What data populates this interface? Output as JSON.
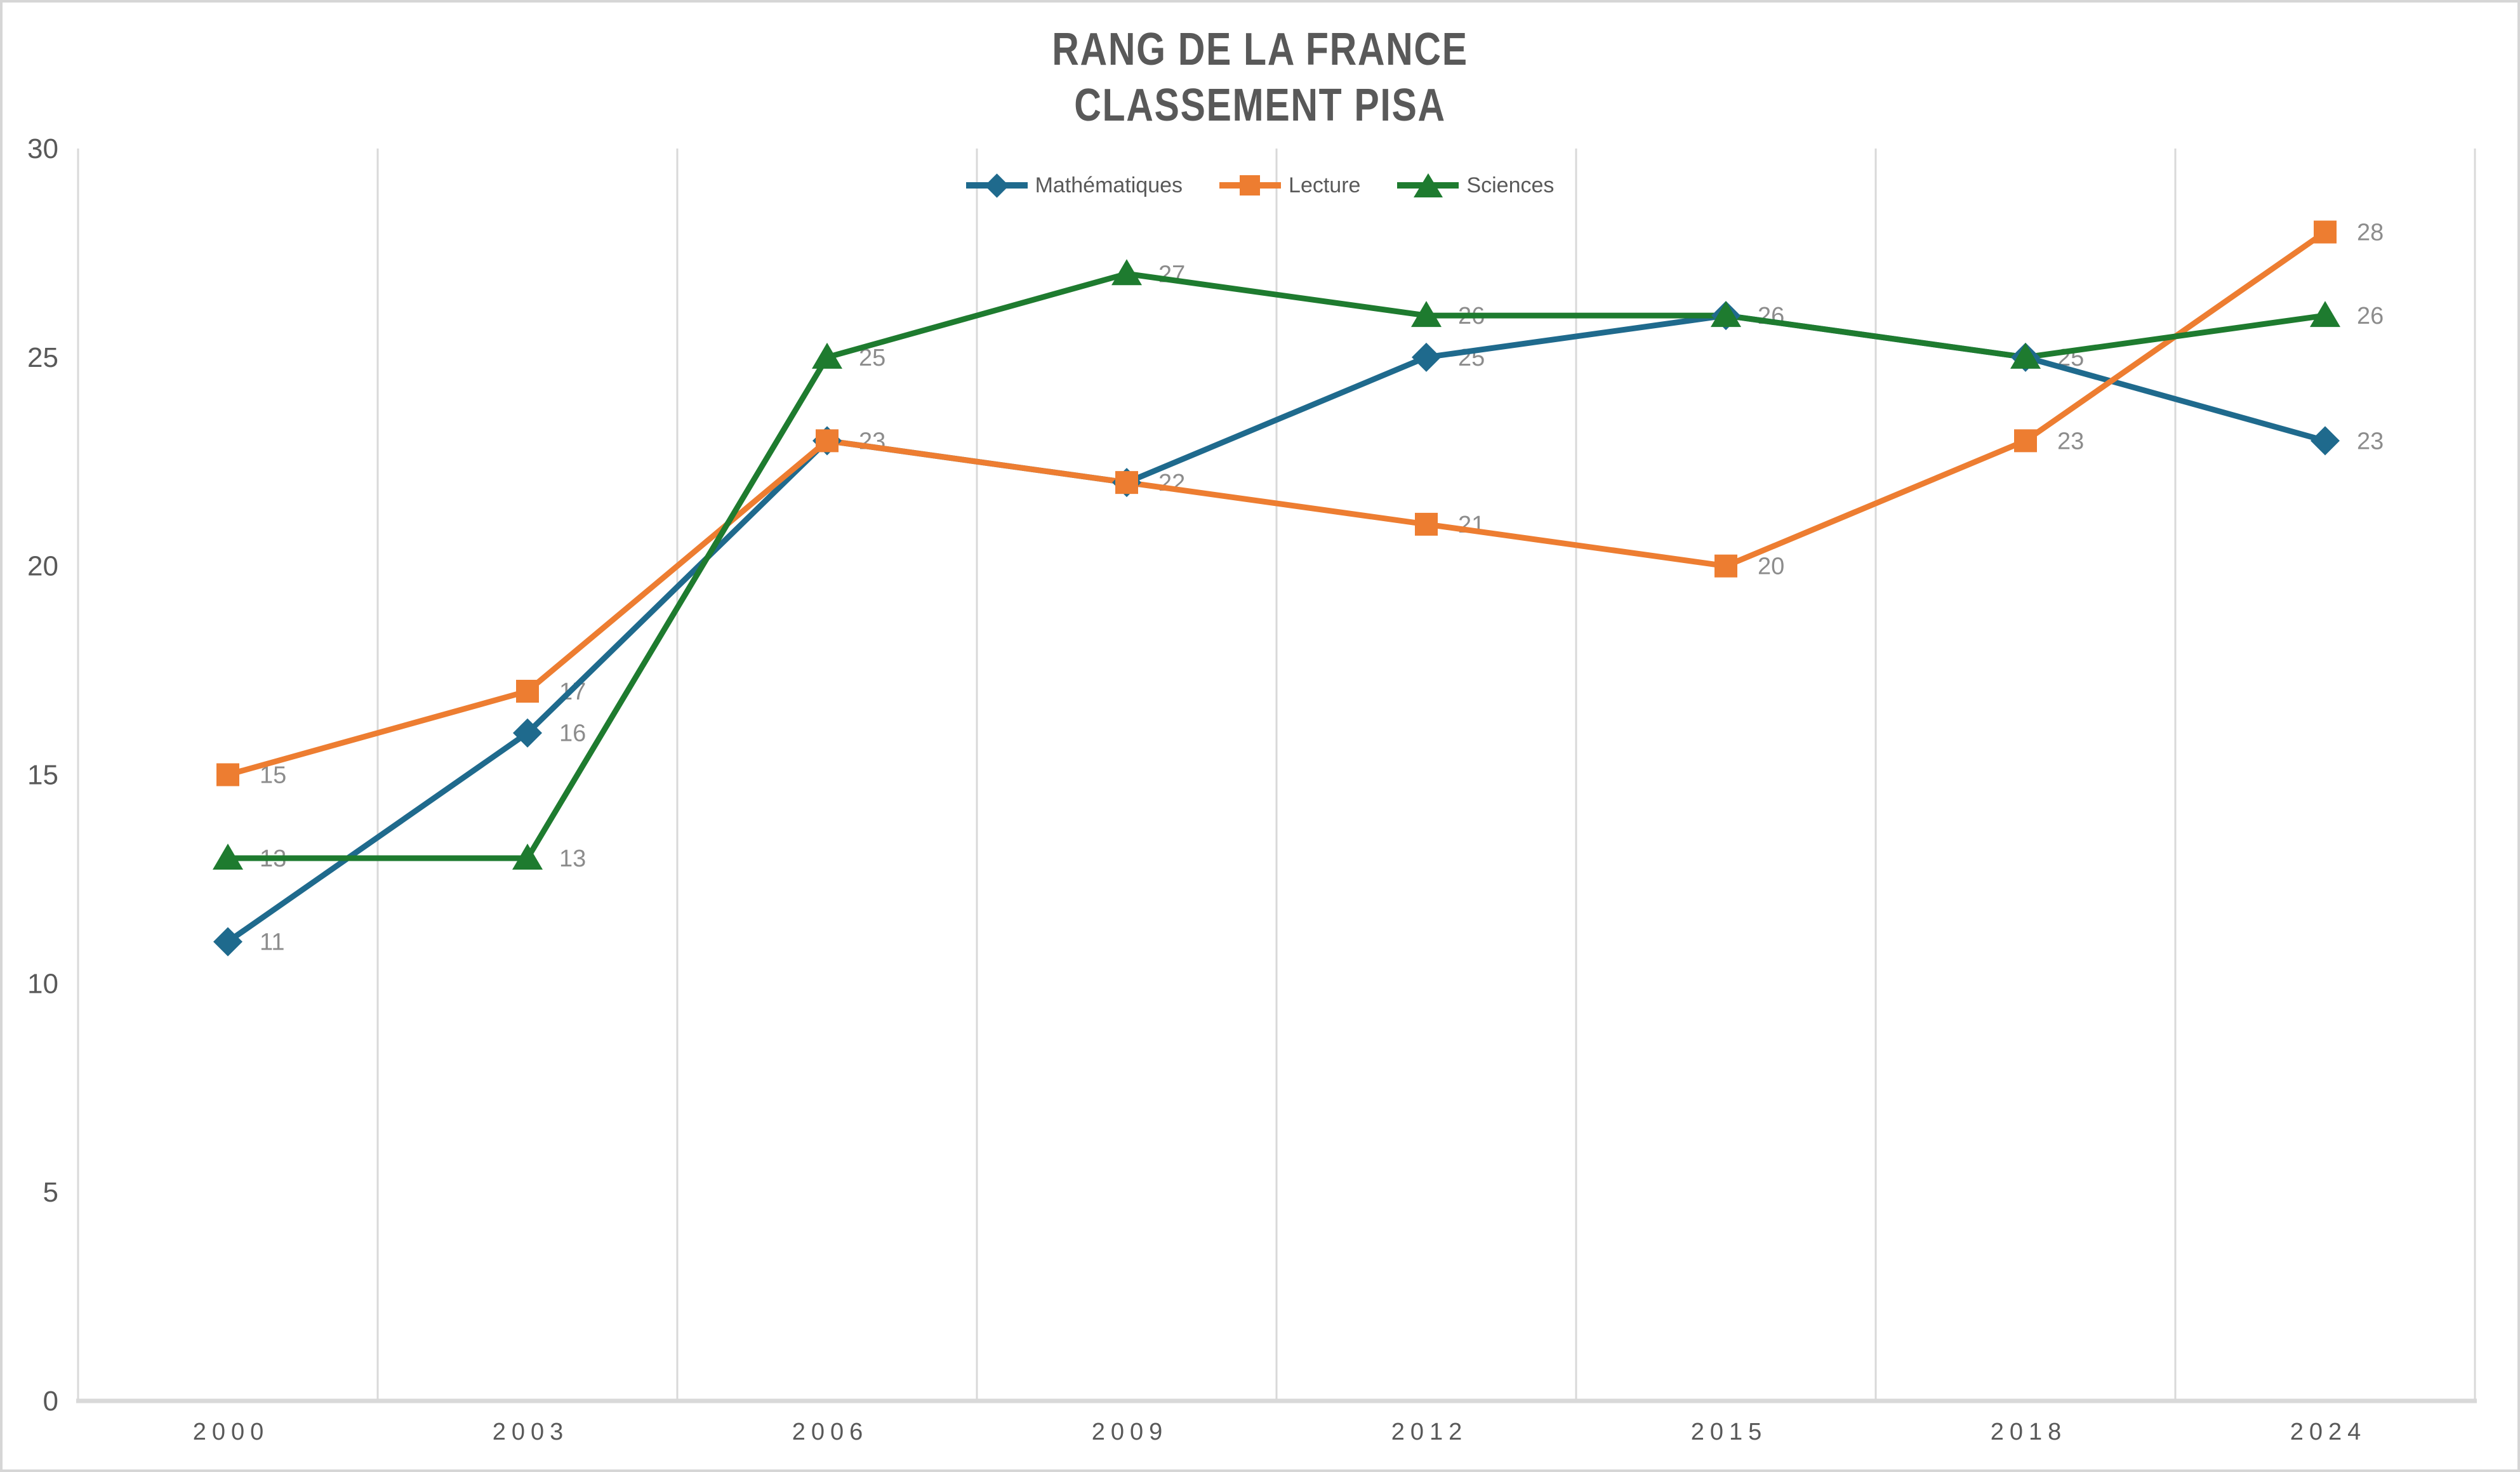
{
  "title": {
    "line1": "RANG DE LA FRANCE",
    "line2": "CLASSEMENT PISA"
  },
  "colors": {
    "mathematiques": "#1F6A8D",
    "lecture": "#ED7D31",
    "sciences": "#1E7B2F",
    "gridline": "#D9D9D9",
    "axis_line": "#D9D9D9",
    "tick_label": "#595959",
    "data_label": "#8C8C8C",
    "title_text": "#595959",
    "legend_text": "#595959"
  },
  "chart_data": {
    "type": "line",
    "title": "RANG DE LA FRANCE CLASSEMENT PISA",
    "categories": [
      "2000",
      "2003",
      "2006",
      "2009",
      "2012",
      "2015",
      "2018",
      "2024"
    ],
    "series": [
      {
        "name": "Mathématiques",
        "marker": "diamond",
        "color": "#1F6A8D",
        "values": [
          11,
          16,
          23,
          22,
          25,
          26,
          25,
          23
        ]
      },
      {
        "name": "Lecture",
        "marker": "square",
        "color": "#ED7D31",
        "values": [
          15,
          17,
          23,
          22,
          21,
          20,
          23,
          28
        ]
      },
      {
        "name": "Sciences",
        "marker": "triangle",
        "color": "#1E7B2F",
        "values": [
          13,
          13,
          25,
          27,
          26,
          26,
          25,
          26
        ]
      }
    ],
    "ylim": [
      0,
      30
    ],
    "yticks": [
      0,
      5,
      10,
      15,
      20,
      25,
      30
    ],
    "xlabel": "",
    "ylabel": "",
    "grid": "vertical-only",
    "legend_position": "top-center",
    "data_labels": "right-of-point"
  }
}
